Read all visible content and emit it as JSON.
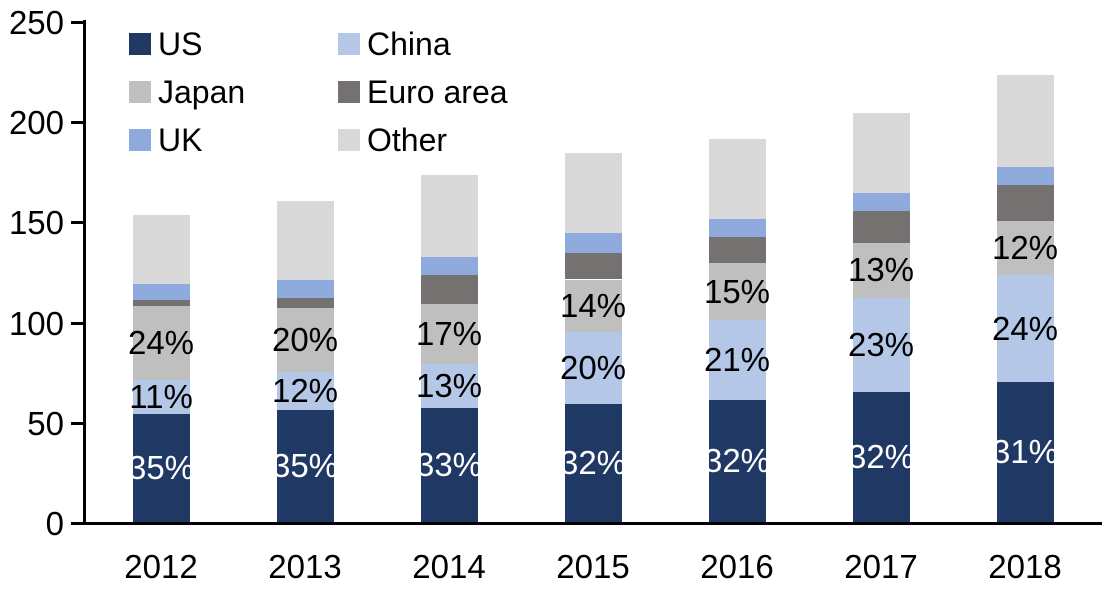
{
  "chart_data": {
    "type": "bar",
    "stacked": true,
    "title": "",
    "categories": [
      "2012",
      "2013",
      "2014",
      "2015",
      "2016",
      "2017",
      "2018"
    ],
    "series": [
      {
        "name": "US",
        "color": "#1F3864",
        "values": [
          54,
          56,
          57,
          59,
          61,
          65,
          70
        ],
        "labels": [
          "35%",
          "35%",
          "33%",
          "32%",
          "32%",
          "32%",
          "31%"
        ],
        "label_color": "#FFFFFF"
      },
      {
        "name": "China",
        "color": "#B4C7E7",
        "values": [
          17,
          19,
          22,
          36,
          40,
          47,
          53
        ],
        "labels": [
          "11%",
          "12%",
          "13%",
          "20%",
          "21%",
          "23%",
          "24%"
        ],
        "label_color": "#000000"
      },
      {
        "name": "Japan",
        "color": "#BFBFBF",
        "values": [
          37,
          32,
          30,
          26,
          28,
          27,
          27
        ],
        "labels": [
          "24%",
          "20%",
          "17%",
          "14%",
          "15%",
          "13%",
          "12%"
        ],
        "label_color": "#000000"
      },
      {
        "name": "Euro area",
        "color": "#767171",
        "values": [
          3,
          5,
          14,
          13,
          13,
          16,
          18
        ],
        "labels": null,
        "label_color": null
      },
      {
        "name": "UK",
        "color": "#8FAADC",
        "values": [
          8,
          9,
          9,
          10,
          9,
          9,
          9
        ],
        "labels": null,
        "label_color": null
      },
      {
        "name": "Other",
        "color": "#D9D9D9",
        "values": [
          34,
          39,
          41,
          40,
          40,
          40,
          46
        ],
        "labels": null,
        "label_color": null
      }
    ],
    "totals": [
      153,
      160,
      173,
      184,
      191,
      204,
      223
    ],
    "y_ticks": [
      "0",
      "50",
      "100",
      "150",
      "200",
      "250"
    ],
    "y_tick_values": [
      0,
      50,
      100,
      150,
      200,
      250
    ],
    "ylim": [
      0,
      250
    ],
    "grid": false,
    "legend_position": "top-left",
    "axis_color": "#000000",
    "background_color": "#FFFFFF"
  }
}
